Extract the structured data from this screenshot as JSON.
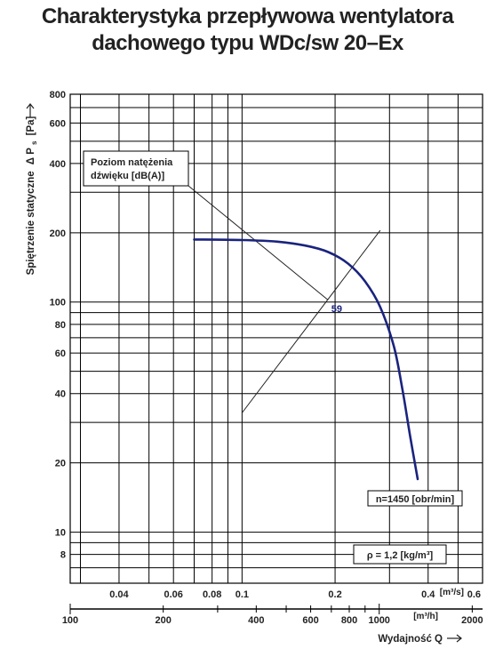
{
  "title": {
    "line1": "Charakterystyka przepływowa wentylatora",
    "line2": "dachowego typu WDc/sw 20–Ex"
  },
  "chart_data": {
    "type": "line",
    "title": "Charakterystyka przepływowa wentylatora dachowego typu WDc/sw 20–Ex",
    "xscale": "log",
    "yscale": "log",
    "grid": true,
    "x_top": {
      "unit_label": "[m³/s]",
      "range": [
        0.0278,
        0.6
      ],
      "tick_labels": [
        "0.04",
        "0.06",
        "0.08",
        "0.1",
        "0.2",
        "0.4",
        "0.6"
      ],
      "ticks": [
        0.04,
        0.06,
        0.08,
        0.1,
        0.2,
        0.4,
        0.6
      ]
    },
    "x_bottom": {
      "unit_label": "[m³/h]",
      "range": [
        100,
        2160
      ],
      "tick_labels": [
        "100",
        "200",
        "400",
        "600",
        "800",
        "1000",
        "2000"
      ],
      "ticks": [
        100,
        200,
        400,
        600,
        800,
        1000,
        2000
      ],
      "axis_title": "Wydajność Q"
    },
    "y": {
      "axis_title": "Spiętrzenie statyczne",
      "axis_title_symbol": "Δ P",
      "axis_title_sub": "s",
      "axis_title_unit": "[Pa]",
      "range": [
        6,
        800
      ],
      "tick_labels": [
        "8",
        "10",
        "20",
        "40",
        "60",
        "80",
        "100",
        "200",
        "400",
        "600",
        "800"
      ],
      "ticks": [
        8,
        10,
        20,
        40,
        60,
        80,
        100,
        200,
        400,
        600,
        800
      ]
    },
    "vertical_gridlines_m3s": [
      0.03,
      0.04,
      0.05,
      0.06,
      0.07,
      0.08,
      0.09,
      0.1,
      0.2,
      0.3,
      0.4,
      0.5
    ],
    "horizontal_gridlines_pa": [
      7,
      8,
      9,
      10,
      20,
      30,
      40,
      50,
      60,
      70,
      80,
      90,
      100,
      200,
      300,
      400,
      500,
      600,
      700,
      800
    ],
    "series": [
      {
        "name": "n=1450 [obr/min]",
        "color": "#1a237e",
        "x_m3s": [
          0.07,
          0.1,
          0.13,
          0.16,
          0.19,
          0.22,
          0.25,
          0.28,
          0.31,
          0.33,
          0.35,
          0.37
        ],
        "y_pa": [
          187,
          186,
          183,
          176,
          165,
          147,
          123,
          95,
          64,
          42,
          26,
          17
        ]
      }
    ],
    "noise_line": {
      "label": "59",
      "x_m3s": [
        0.1,
        0.28
      ],
      "y_pa": [
        33,
        205
      ]
    },
    "annotations": {
      "noise_box": [
        "Poziom natężenia",
        "dźwięku [dB(A)]"
      ],
      "speed_box": "n=1450 [obr/min]",
      "density_box": "ρ = 1,2 [kg/m³]"
    }
  }
}
